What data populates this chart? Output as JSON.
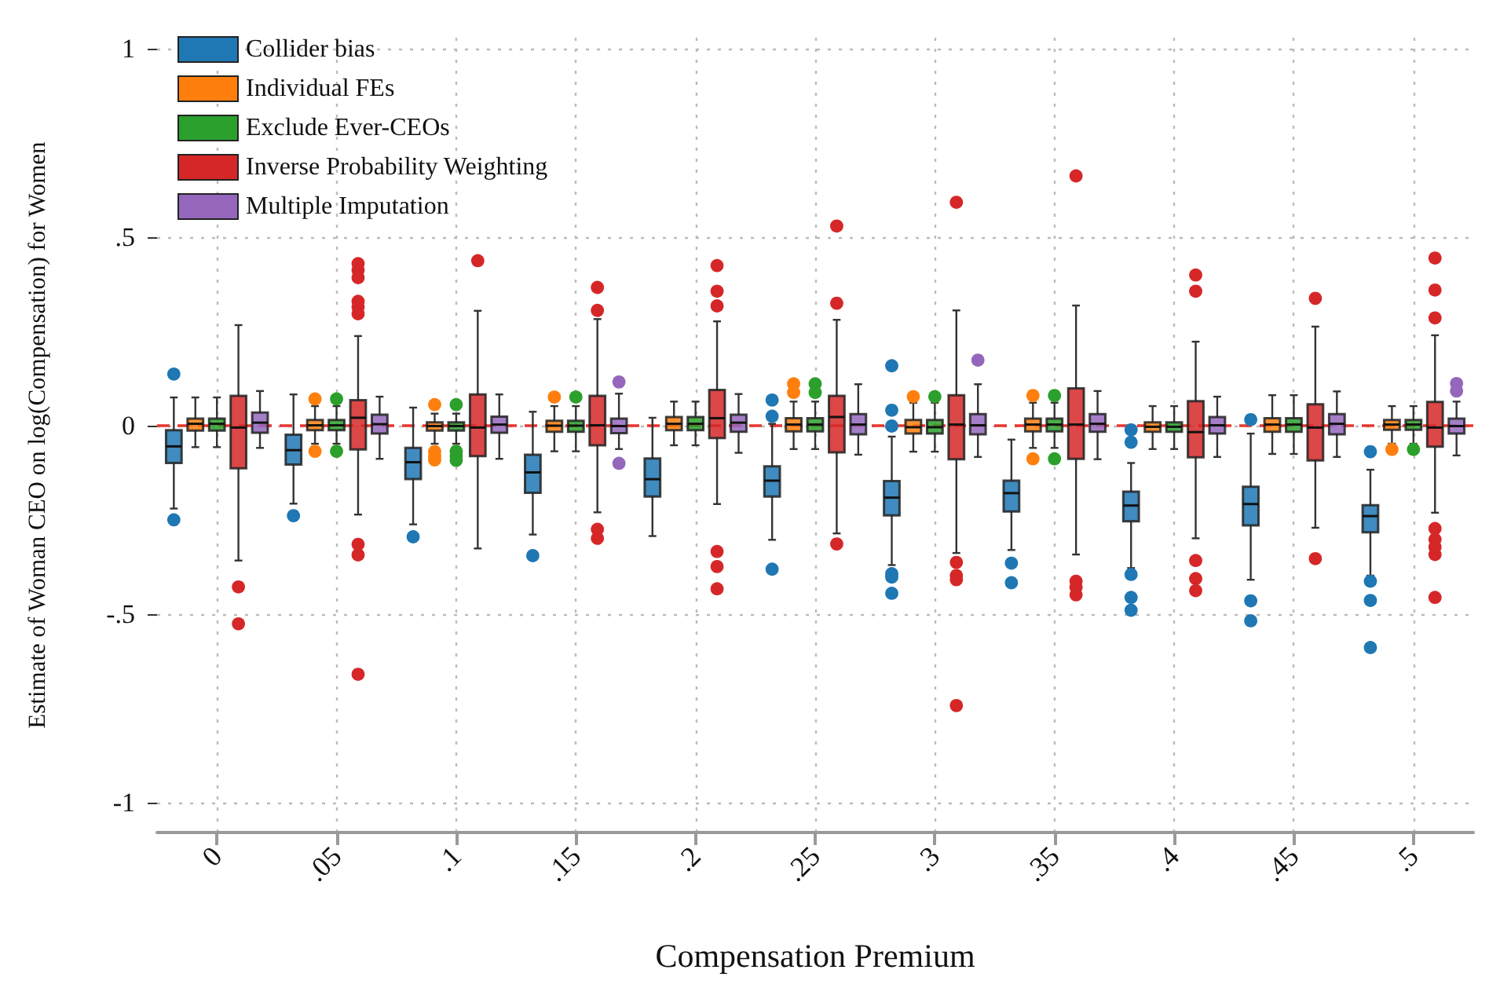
{
  "chart_data": {
    "type": "box",
    "xlabel": "Compensation Premium",
    "ylabel": "Estimate of Woman CEO on log(Compensation) for Women",
    "categories": [
      "0",
      ".05",
      ".1",
      ".15",
      ".2",
      ".25",
      ".3",
      ".35",
      ".4",
      ".45",
      ".5"
    ],
    "ylim": [
      -1.08,
      1.03
    ],
    "yticks": [
      {
        "value": -1,
        "label": "-1"
      },
      {
        "value": -0.5,
        "label": "-.5"
      },
      0,
      {
        "value": 0.5,
        "label": ".5"
      },
      1
    ],
    "grid": true,
    "legend": "top left",
    "marker": "circle",
    "ref_lines": [
      {
        "axis": "y",
        "value": 0,
        "color": "#e8362f",
        "line_style": "dashed"
      }
    ],
    "series": [
      {
        "name": "Collider bias",
        "color": "#1f77b4",
        "boxes": [
          {
            "low": -0.22,
            "q1": -0.099,
            "median": -0.055,
            "q3": -0.012,
            "high": 0.075,
            "outliers": [
              0.137,
              -0.25
            ]
          },
          {
            "low": -0.207,
            "q1": -0.103,
            "median": -0.065,
            "q3": -0.024,
            "high": 0.083,
            "outliers": [
              -0.239
            ]
          },
          {
            "low": -0.262,
            "q1": -0.142,
            "median": -0.097,
            "q3": -0.059,
            "high": 0.048,
            "outliers": [
              -0.295
            ]
          },
          {
            "low": -0.289,
            "q1": -0.178,
            "median": -0.124,
            "q3": -0.077,
            "high": 0.037,
            "outliers": [
              -0.345
            ]
          },
          {
            "low": -0.293,
            "q1": -0.188,
            "median": -0.142,
            "q3": -0.087,
            "high": 0.021
          },
          {
            "low": -0.303,
            "q1": -0.188,
            "median": -0.146,
            "q3": -0.108,
            "high": 0.005,
            "outliers": [
              0.068,
              0.025,
              -0.381
            ]
          },
          {
            "low": -0.37,
            "q1": -0.238,
            "median": -0.191,
            "q3": -0.147,
            "high": -0.029,
            "outliers": [
              0.159,
              0.041,
              -0.001,
              -0.393,
              -0.402,
              -0.445
            ]
          },
          {
            "low": -0.33,
            "q1": -0.228,
            "median": -0.179,
            "q3": -0.146,
            "high": -0.037,
            "outliers": [
              -0.365,
              -0.417
            ]
          },
          {
            "low": -0.378,
            "q1": -0.254,
            "median": -0.212,
            "q3": -0.175,
            "high": -0.099,
            "outliers": [
              -0.011,
              -0.044,
              -0.395,
              -0.456,
              -0.49
            ]
          },
          {
            "low": -0.409,
            "q1": -0.265,
            "median": -0.208,
            "q3": -0.162,
            "high": -0.021,
            "outliers": [
              0.016,
              -0.465,
              -0.518
            ]
          },
          {
            "low": -0.398,
            "q1": -0.283,
            "median": -0.24,
            "q3": -0.211,
            "high": -0.117,
            "outliers": [
              -0.069,
              -0.413,
              -0.464,
              -0.589
            ]
          }
        ]
      },
      {
        "name": "Individual FEs",
        "color": "#ff7f0e",
        "boxes": [
          {
            "low": -0.057,
            "q1": -0.013,
            "median": 0.005,
            "q3": 0.019,
            "high": 0.075
          },
          {
            "low": -0.048,
            "q1": -0.012,
            "median": 0.001,
            "q3": 0.015,
            "high": 0.052,
            "outliers": [
              0.071,
              -0.068
            ]
          },
          {
            "low": -0.048,
            "q1": -0.013,
            "median": -0.001,
            "q3": 0.009,
            "high": 0.032,
            "outliers": [
              0.056,
              -0.069,
              -0.081,
              -0.091
            ]
          },
          {
            "low": -0.068,
            "q1": -0.016,
            "median": 0,
            "q3": 0.013,
            "high": 0.052,
            "outliers": [
              0.076
            ]
          },
          {
            "low": -0.052,
            "q1": -0.012,
            "median": 0.005,
            "q3": 0.023,
            "high": 0.064
          },
          {
            "low": -0.062,
            "q1": -0.015,
            "median": 0.003,
            "q3": 0.02,
            "high": 0.064,
            "outliers": [
              0.111,
              0.088
            ]
          },
          {
            "low": -0.069,
            "q1": -0.021,
            "median": -0.004,
            "q3": 0.015,
            "high": 0.061,
            "outliers": [
              0.077
            ]
          },
          {
            "low": -0.059,
            "q1": -0.015,
            "median": 0.003,
            "q3": 0.019,
            "high": 0.061,
            "outliers": [
              0.08,
              -0.088
            ]
          },
          {
            "low": -0.062,
            "q1": -0.016,
            "median": -0.003,
            "q3": 0.009,
            "high": 0.052
          },
          {
            "low": -0.075,
            "q1": -0.016,
            "median": 0.003,
            "q3": 0.02,
            "high": 0.081
          },
          {
            "low": -0.048,
            "q1": -0.011,
            "median": 0.003,
            "q3": 0.015,
            "high": 0.052,
            "outliers": [
              -0.063
            ]
          }
        ]
      },
      {
        "name": "Exclude Ever-CEOs",
        "color": "#2ca02c",
        "boxes": [
          {
            "low": -0.057,
            "q1": -0.013,
            "median": 0.005,
            "q3": 0.019,
            "high": 0.075
          },
          {
            "low": -0.048,
            "q1": -0.012,
            "median": 0.001,
            "q3": 0.015,
            "high": 0.052,
            "outliers": [
              0.071,
              -0.068
            ]
          },
          {
            "low": -0.048,
            "q1": -0.013,
            "median": -0.001,
            "q3": 0.009,
            "high": 0.032,
            "outliers": [
              0.056,
              -0.068,
              -0.08,
              -0.092
            ]
          },
          {
            "low": -0.068,
            "q1": -0.016,
            "median": 0,
            "q3": 0.013,
            "high": 0.052,
            "outliers": [
              0.076
            ]
          },
          {
            "low": -0.052,
            "q1": -0.012,
            "median": 0.005,
            "q3": 0.023,
            "high": 0.064
          },
          {
            "low": -0.062,
            "q1": -0.015,
            "median": 0.003,
            "q3": 0.02,
            "high": 0.064,
            "outliers": [
              0.111,
              0.088
            ]
          },
          {
            "low": -0.069,
            "q1": -0.021,
            "median": -0.004,
            "q3": 0.015,
            "high": 0.061,
            "outliers": [
              0.077
            ]
          },
          {
            "low": -0.059,
            "q1": -0.015,
            "median": 0.003,
            "q3": 0.019,
            "high": 0.061,
            "outliers": [
              0.08,
              -0.088
            ]
          },
          {
            "low": -0.062,
            "q1": -0.016,
            "median": -0.003,
            "q3": 0.009,
            "high": 0.052
          },
          {
            "low": -0.075,
            "q1": -0.016,
            "median": 0.003,
            "q3": 0.02,
            "high": 0.081
          },
          {
            "low": -0.048,
            "q1": -0.011,
            "median": 0.003,
            "q3": 0.015,
            "high": 0.052,
            "outliers": [
              -0.063
            ]
          }
        ]
      },
      {
        "name": "Inverse Probability Weighting",
        "color": "#d62728",
        "boxes": [
          {
            "low": -0.358,
            "q1": -0.113,
            "median": -0.005,
            "q3": 0.079,
            "high": 0.267,
            "outliers": [
              -0.428,
              -0.526
            ]
          },
          {
            "low": -0.236,
            "q1": -0.063,
            "median": 0.021,
            "q3": 0.068,
            "high": 0.238,
            "outliers": [
              0.43,
              0.413,
              0.393,
              0.33,
              0.315,
              0.297,
              -0.315,
              -0.343,
              -0.66
            ]
          },
          {
            "low": -0.326,
            "q1": -0.081,
            "median": -0.005,
            "q3": 0.083,
            "high": 0.305,
            "outliers": [
              0.438
            ]
          },
          {
            "low": -0.23,
            "q1": -0.052,
            "median": 0.001,
            "q3": 0.079,
            "high": 0.283,
            "outliers": [
              0.367,
              0.306,
              -0.275,
              -0.299
            ]
          },
          {
            "low": -0.208,
            "q1": -0.033,
            "median": 0.02,
            "q3": 0.095,
            "high": 0.277,
            "outliers": [
              0.425,
              0.357,
              0.318,
              -0.334,
              -0.374,
              -0.433
            ]
          },
          {
            "low": -0.286,
            "q1": -0.071,
            "median": 0.023,
            "q3": 0.079,
            "high": 0.281,
            "outliers": [
              0.53,
              0.325,
              -0.314
            ]
          },
          {
            "low": -0.338,
            "q1": -0.089,
            "median": 0.003,
            "q3": 0.081,
            "high": 0.306,
            "outliers": [
              0.593,
              -0.363,
              -0.398,
              -0.409,
              -0.743
            ]
          },
          {
            "low": -0.342,
            "q1": -0.088,
            "median": 0.003,
            "q3": 0.099,
            "high": 0.319,
            "outliers": [
              0.663,
              -0.413,
              -0.429,
              -0.449
            ]
          },
          {
            "low": -0.299,
            "q1": -0.084,
            "median": -0.017,
            "q3": 0.065,
            "high": 0.223,
            "outliers": [
              0.4,
              0.357,
              -0.358,
              -0.406,
              -0.438
            ]
          },
          {
            "low": -0.271,
            "q1": -0.092,
            "median": -0.005,
            "q3": 0.057,
            "high": 0.263,
            "outliers": [
              0.338,
              -0.353
            ]
          },
          {
            "low": -0.231,
            "q1": -0.056,
            "median": -0.005,
            "q3": 0.063,
            "high": 0.24,
            "outliers": [
              0.445,
              0.36,
              0.286,
              -0.273,
              -0.302,
              -0.322,
              -0.342,
              -0.456
            ]
          }
        ]
      },
      {
        "name": "Multiple Imputation",
        "color": "#9467bd",
        "boxes": [
          {
            "low": -0.059,
            "q1": -0.019,
            "median": 0.008,
            "q3": 0.035,
            "high": 0.092
          },
          {
            "low": -0.088,
            "q1": -0.021,
            "median": 0.004,
            "q3": 0.029,
            "high": 0.077
          },
          {
            "low": -0.088,
            "q1": -0.019,
            "median": 0.003,
            "q3": 0.024,
            "high": 0.083
          },
          {
            "low": -0.062,
            "q1": -0.02,
            "median": -0.001,
            "q3": 0.019,
            "high": 0.085,
            "outliers": [
              0.116,
              -0.1
            ]
          },
          {
            "low": -0.072,
            "q1": -0.016,
            "median": 0.008,
            "q3": 0.029,
            "high": 0.084
          },
          {
            "low": -0.077,
            "q1": -0.023,
            "median": 0.003,
            "q3": 0.031,
            "high": 0.11
          },
          {
            "low": -0.083,
            "q1": -0.023,
            "median": 0.001,
            "q3": 0.031,
            "high": 0.11,
            "outliers": [
              0.174
            ]
          },
          {
            "low": -0.089,
            "q1": -0.016,
            "median": 0.005,
            "q3": 0.031,
            "high": 0.092
          },
          {
            "low": -0.083,
            "q1": -0.021,
            "median": 0.001,
            "q3": 0.023,
            "high": 0.077
          },
          {
            "low": -0.083,
            "q1": -0.023,
            "median": 0.005,
            "q3": 0.031,
            "high": 0.091
          },
          {
            "low": -0.079,
            "q1": -0.021,
            "median": -0.001,
            "q3": 0.019,
            "high": 0.064,
            "outliers": [
              0.112,
              0.092
            ]
          }
        ]
      }
    ]
  }
}
